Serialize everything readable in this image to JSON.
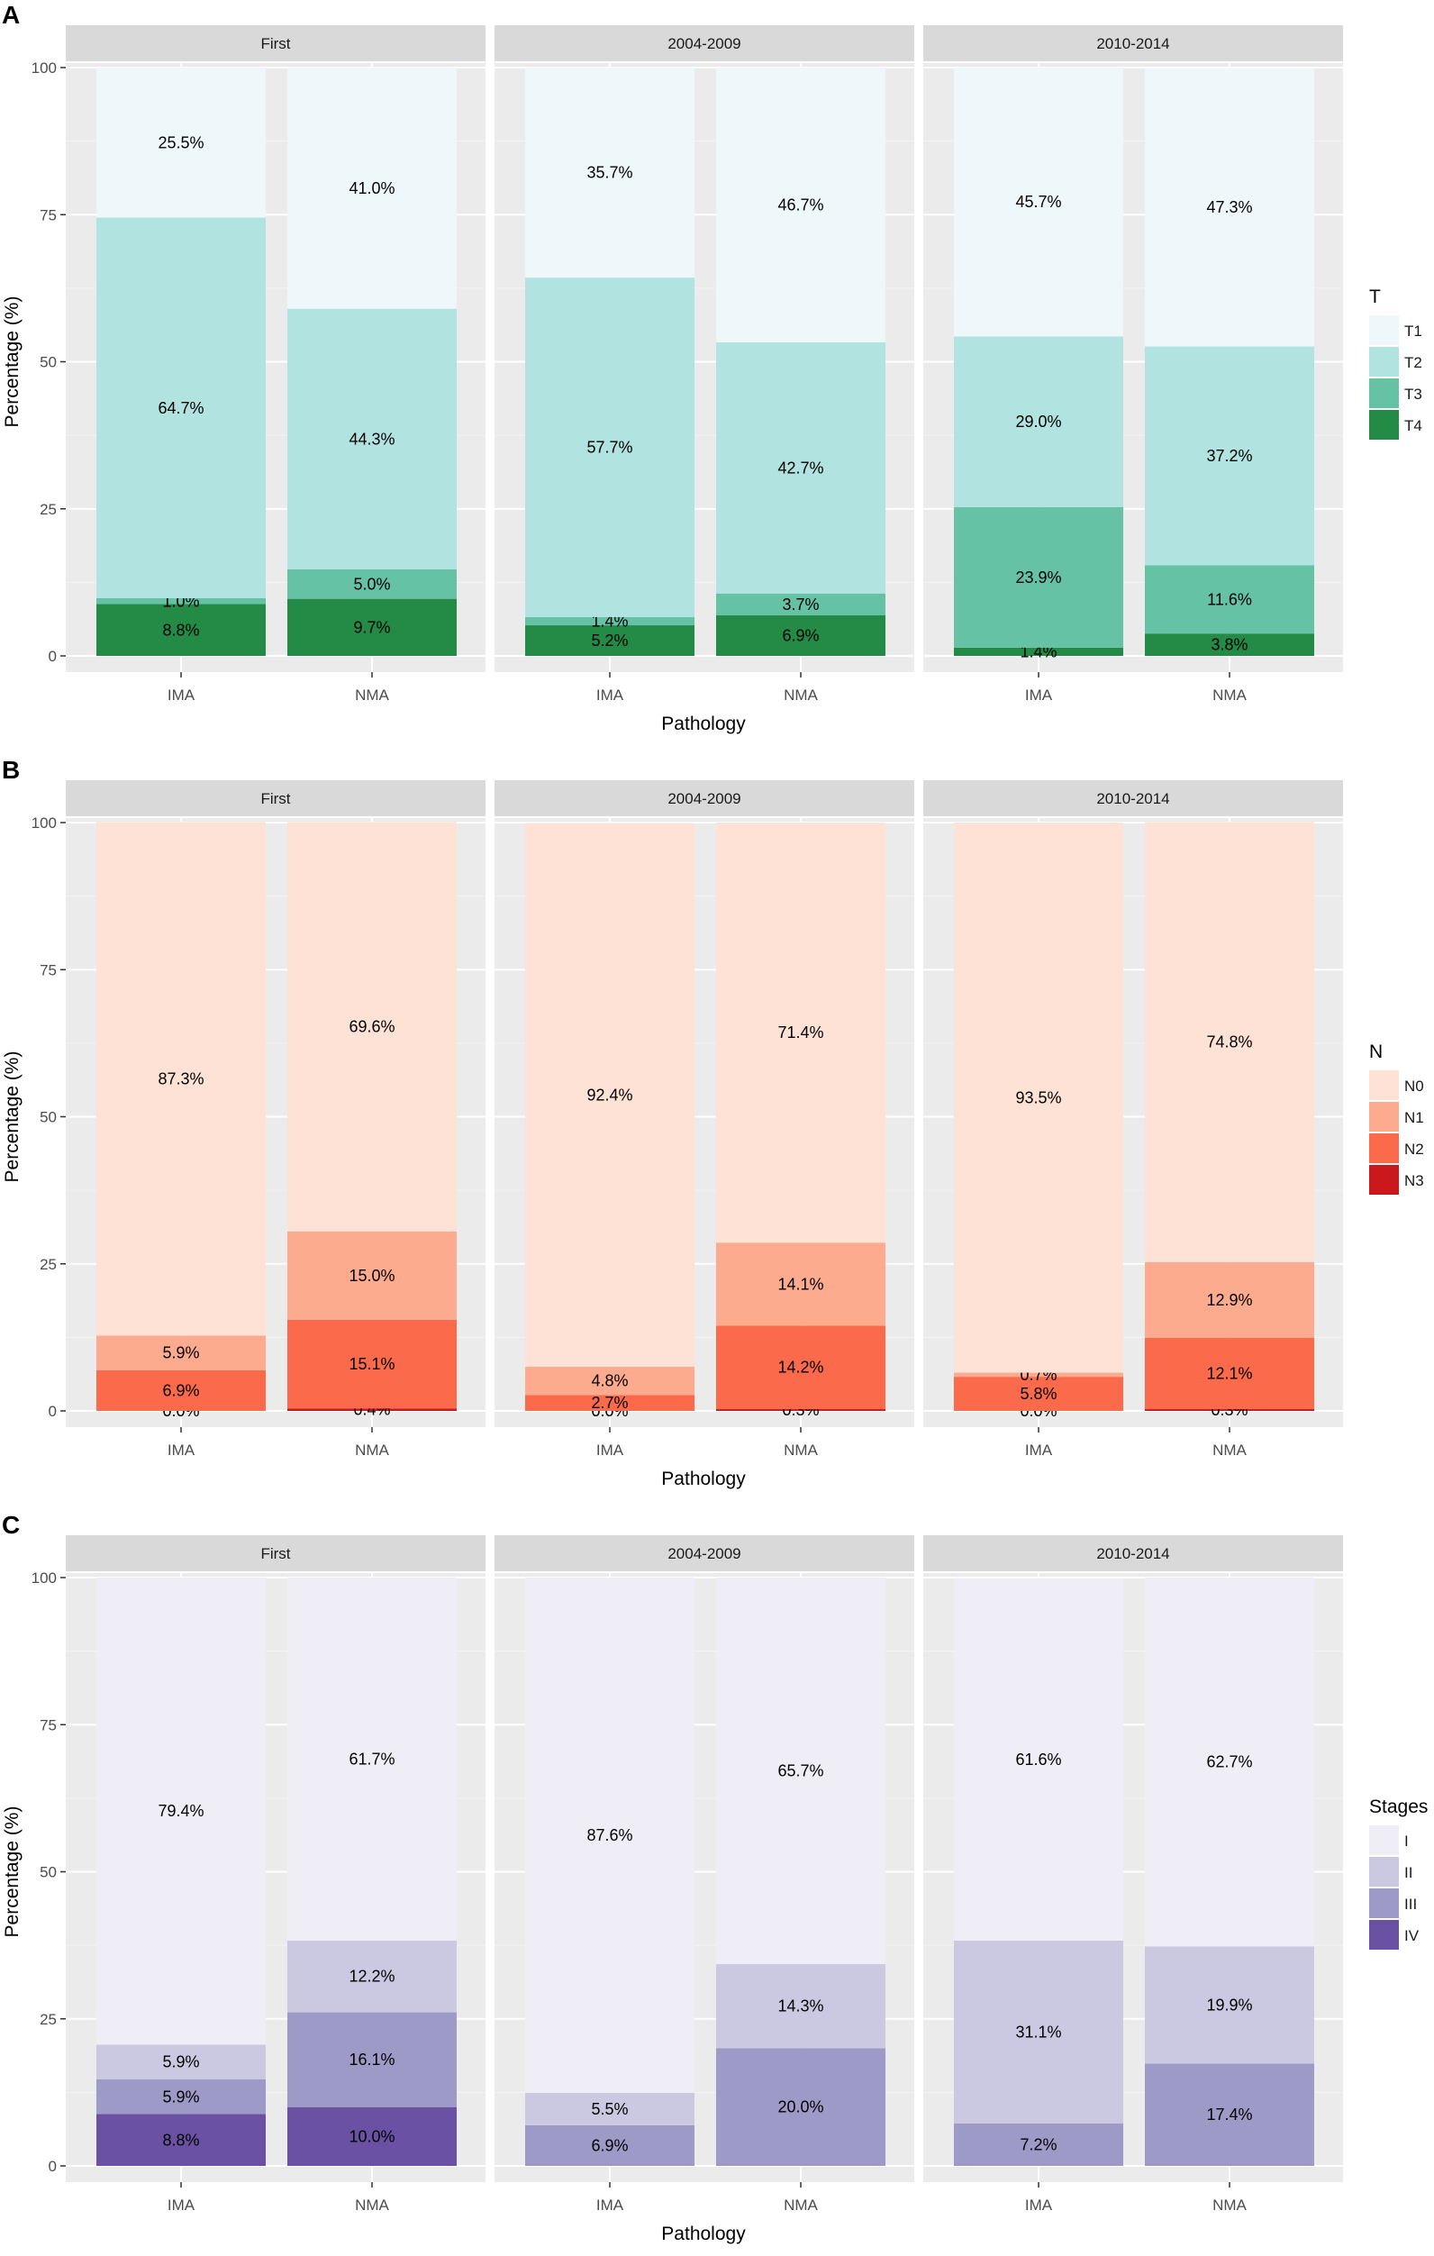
{
  "chart_data": [
    {
      "type": "bar",
      "stacked": true,
      "panel_label": "A",
      "facets": [
        "First",
        "2004-2009",
        "2010-2014"
      ],
      "categories": [
        "IMA",
        "NMA"
      ],
      "xlabel": "Pathology",
      "ylabel": "Percentage (%)",
      "ylim": [
        0,
        100
      ],
      "yticks": [
        "0",
        "25",
        "50",
        "75",
        "100"
      ],
      "grid": true,
      "legend": {
        "title": "T",
        "position": "right"
      },
      "series": [
        {
          "name": "T1",
          "color": "#eef8fa",
          "values": [
            [
              25.5,
              41.0
            ],
            [
              35.7,
              46.7
            ],
            [
              45.7,
              47.3
            ]
          ],
          "labels": [
            [
              "25.5%",
              "41.0%"
            ],
            [
              "35.7%",
              "46.7%"
            ],
            [
              "45.7%",
              "47.3%"
            ]
          ]
        },
        {
          "name": "T2",
          "color": "#b1e3e0",
          "values": [
            [
              64.7,
              44.3
            ],
            [
              57.7,
              42.7
            ],
            [
              29.0,
              37.2
            ]
          ],
          "labels": [
            [
              "64.7%",
              "44.3%"
            ],
            [
              "57.7%",
              "42.7%"
            ],
            [
              "29.0%",
              "37.2%"
            ]
          ]
        },
        {
          "name": "T3",
          "color": "#66c2a4",
          "values": [
            [
              1.0,
              5.0
            ],
            [
              1.4,
              3.7
            ],
            [
              23.9,
              11.6
            ]
          ],
          "labels": [
            [
              "1.0%",
              "5.0%"
            ],
            [
              "1.4%",
              "3.7%"
            ],
            [
              "23.9%",
              "11.6%"
            ]
          ]
        },
        {
          "name": "T4",
          "color": "#238b45",
          "values": [
            [
              8.8,
              9.7
            ],
            [
              5.2,
              6.9
            ],
            [
              1.4,
              3.8
            ]
          ],
          "labels": [
            [
              "8.8%",
              "9.7%"
            ],
            [
              "5.2%",
              "6.9%"
            ],
            [
              "1.4%",
              "3.8%"
            ]
          ]
        }
      ]
    },
    {
      "type": "bar",
      "stacked": true,
      "panel_label": "B",
      "facets": [
        "First",
        "2004-2009",
        "2010-2014"
      ],
      "categories": [
        "IMA",
        "NMA"
      ],
      "xlabel": "Pathology",
      "ylabel": "Percentage (%)",
      "ylim": [
        0,
        100
      ],
      "yticks": [
        "0",
        "25",
        "50",
        "75",
        "100"
      ],
      "grid": true,
      "legend": {
        "title": "N",
        "position": "right"
      },
      "series": [
        {
          "name": "N0",
          "color": "#fee2d5",
          "values": [
            [
              87.3,
              69.6
            ],
            [
              92.4,
              71.4
            ],
            [
              93.5,
              74.8
            ]
          ],
          "labels": [
            [
              "87.3%",
              "69.6%"
            ],
            [
              "92.4%",
              "71.4%"
            ],
            [
              "93.5%",
              "74.8%"
            ]
          ]
        },
        {
          "name": "N1",
          "color": "#fcab8f",
          "values": [
            [
              5.9,
              15.0
            ],
            [
              4.8,
              14.1
            ],
            [
              0.7,
              12.9
            ]
          ],
          "labels": [
            [
              "5.9%",
              "15.0%"
            ],
            [
              "4.8%",
              "14.1%"
            ],
            [
              "0.7%",
              "12.9%"
            ]
          ]
        },
        {
          "name": "N2",
          "color": "#fb6a4a",
          "values": [
            [
              6.9,
              15.1
            ],
            [
              2.7,
              14.2
            ],
            [
              5.8,
              12.1
            ]
          ],
          "labels": [
            [
              "6.9%",
              "15.1%"
            ],
            [
              "2.7%",
              "14.2%"
            ],
            [
              "5.8%",
              "12.1%"
            ]
          ]
        },
        {
          "name": "N3",
          "color": "#cb181d",
          "values": [
            [
              0.0,
              0.4
            ],
            [
              0.0,
              0.3
            ],
            [
              0.0,
              0.3
            ]
          ],
          "labels": [
            [
              "0.0%",
              "0.4%"
            ],
            [
              "0.0%",
              "0.3%"
            ],
            [
              "0.0%",
              "0.3%"
            ]
          ]
        }
      ]
    },
    {
      "type": "bar",
      "stacked": true,
      "panel_label": "C",
      "facets": [
        "First",
        "2004-2009",
        "2010-2014"
      ],
      "categories": [
        "IMA",
        "NMA"
      ],
      "xlabel": "Pathology",
      "ylabel": "Percentage (%)",
      "ylim": [
        0,
        100
      ],
      "yticks": [
        "0",
        "25",
        "50",
        "75",
        "100"
      ],
      "grid": true,
      "legend": {
        "title": "Stages",
        "position": "right"
      },
      "series": [
        {
          "name": "I",
          "color": "#efedf5",
          "values": [
            [
              79.4,
              61.7
            ],
            [
              87.6,
              65.7
            ],
            [
              61.6,
              62.7
            ]
          ],
          "labels": [
            [
              "79.4%",
              "61.7%"
            ],
            [
              "87.6%",
              "65.7%"
            ],
            [
              "61.6%",
              "62.7%"
            ]
          ]
        },
        {
          "name": "II",
          "color": "#cbc9e2",
          "values": [
            [
              5.9,
              12.2
            ],
            [
              5.5,
              14.3
            ],
            [
              31.1,
              19.9
            ]
          ],
          "labels": [
            [
              "5.9%",
              "12.2%"
            ],
            [
              "5.5%",
              "14.3%"
            ],
            [
              "31.1%",
              "19.9%"
            ]
          ]
        },
        {
          "name": "III",
          "color": "#9e9ac8",
          "values": [
            [
              5.9,
              16.1
            ],
            [
              6.9,
              20.0
            ],
            [
              7.2,
              17.4
            ]
          ],
          "labels": [
            [
              "5.9%",
              "16.1%"
            ],
            [
              "6.9%",
              "20.0%"
            ],
            [
              "7.2%",
              "17.4%"
            ]
          ]
        },
        {
          "name": "IV",
          "color": "#6a51a3",
          "values": [
            [
              8.8,
              10.0
            ],
            [
              0,
              0
            ],
            [
              0,
              0
            ]
          ],
          "labels": [
            [
              "8.8%",
              "10.0%"
            ],
            [
              "",
              ""
            ],
            [
              "",
              ""
            ]
          ]
        }
      ]
    }
  ]
}
